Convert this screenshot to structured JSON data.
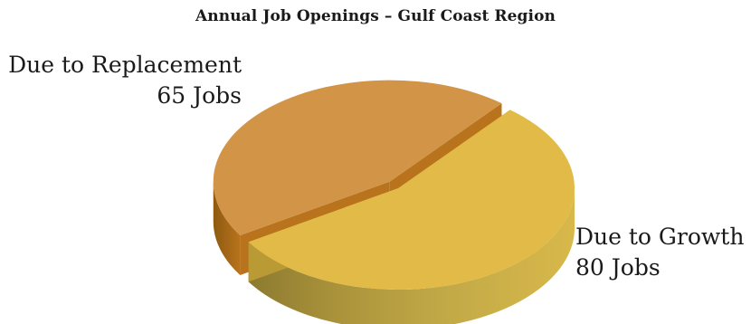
{
  "chart_data": {
    "type": "pie",
    "title": "Annual Job Openings – Gulf Coast Region",
    "style": "3d-exploded",
    "slices": [
      {
        "label": "Due to Replacement",
        "value": 65,
        "value_text": "65 Jobs",
        "color": "#D29447",
        "side_color": "#B8731C",
        "exploded": true
      },
      {
        "label": "Due to Growth",
        "value": 80,
        "value_text": "80 Jobs",
        "color": "#E2BA47",
        "side_color": "#B99A35",
        "exploded": false
      }
    ],
    "legend": "none"
  }
}
